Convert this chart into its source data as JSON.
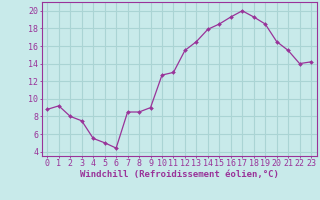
{
  "x": [
    0,
    1,
    2,
    3,
    4,
    5,
    6,
    7,
    8,
    9,
    10,
    11,
    12,
    13,
    14,
    15,
    16,
    17,
    18,
    19,
    20,
    21,
    22,
    23
  ],
  "y": [
    8.8,
    9.2,
    8.0,
    7.5,
    5.5,
    5.0,
    4.4,
    8.5,
    8.5,
    9.0,
    12.7,
    13.0,
    15.5,
    16.5,
    17.9,
    18.5,
    19.3,
    20.0,
    19.3,
    18.5,
    16.5,
    15.5,
    14.0,
    14.2
  ],
  "line_color": "#993399",
  "marker": "D",
  "marker_size": 2,
  "bg_color": "#c8eaea",
  "grid_color": "#aad4d4",
  "xlabel": "Windchill (Refroidissement éolien,°C)",
  "ylabel_ticks": [
    4,
    6,
    8,
    10,
    12,
    14,
    16,
    18,
    20
  ],
  "xlim": [
    -0.5,
    23.5
  ],
  "ylim": [
    3.5,
    21.0
  ],
  "xticks": [
    0,
    1,
    2,
    3,
    4,
    5,
    6,
    7,
    8,
    9,
    10,
    11,
    12,
    13,
    14,
    15,
    16,
    17,
    18,
    19,
    20,
    21,
    22,
    23
  ],
  "line_color_hex": "#993399",
  "xlabel_fontsize": 6.5,
  "tick_fontsize": 6.0
}
